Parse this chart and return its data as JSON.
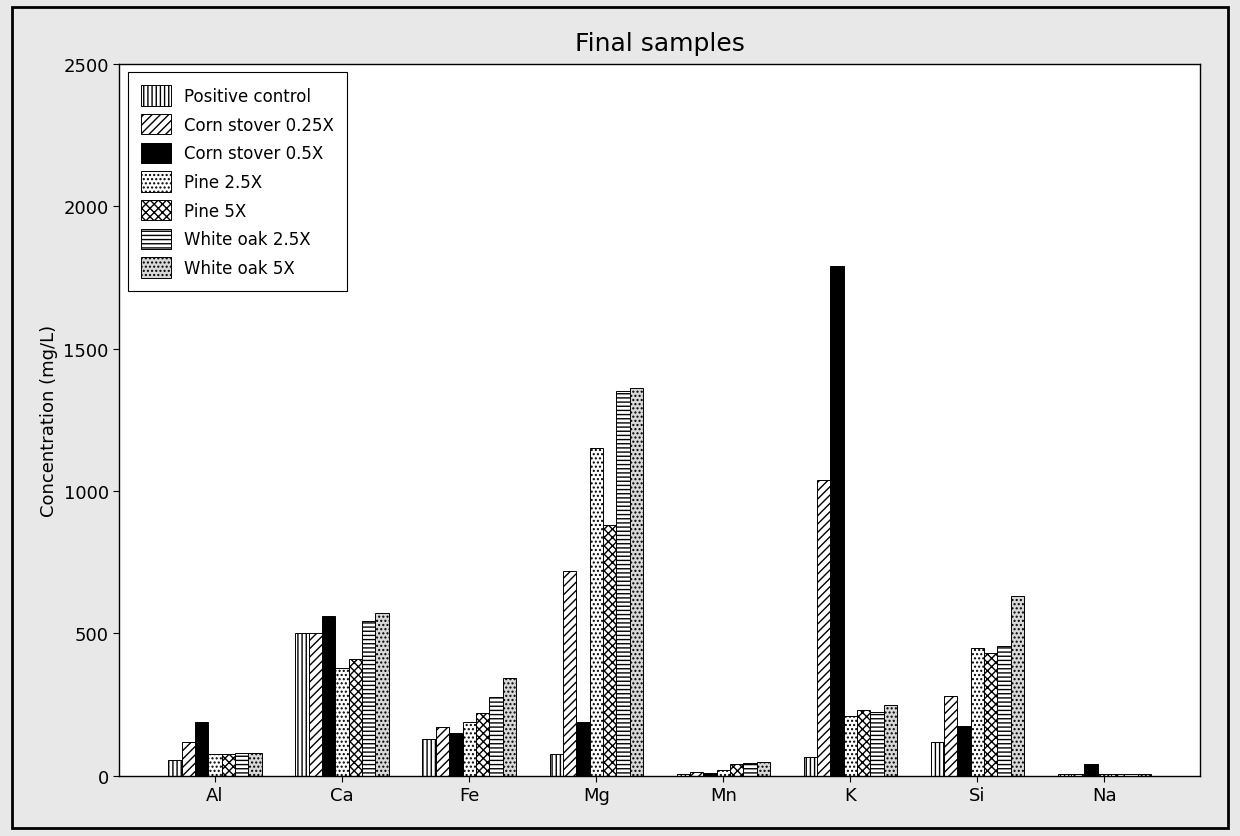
{
  "title": "Final samples",
  "ylabel": "Concentration (mg/L)",
  "xlabel": "",
  "categories": [
    "Al",
    "Ca",
    "Fe",
    "Mg",
    "Mn",
    "K",
    "Si",
    "Na"
  ],
  "series": [
    {
      "label": "Positive control",
      "hatch": "||||",
      "facecolor": "white",
      "edgecolor": "black",
      "values": [
        55,
        500,
        130,
        75,
        5,
        65,
        120,
        5
      ]
    },
    {
      "label": "Corn stover 0.25X",
      "hatch": "////",
      "facecolor": "white",
      "edgecolor": "black",
      "values": [
        120,
        500,
        170,
        720,
        15,
        1040,
        280,
        5
      ]
    },
    {
      "label": "Corn stover 0.5X",
      "hatch": "",
      "facecolor": "black",
      "edgecolor": "black",
      "values": [
        190,
        560,
        150,
        190,
        10,
        1790,
        175,
        40
      ]
    },
    {
      "label": "Pine 2.5X",
      "hatch": "....",
      "facecolor": "white",
      "edgecolor": "black",
      "values": [
        75,
        380,
        190,
        1150,
        20,
        210,
        450,
        5
      ]
    },
    {
      "label": "Pine 5X",
      "hatch": "xxxx",
      "facecolor": "white",
      "edgecolor": "black",
      "values": [
        75,
        410,
        220,
        880,
        40,
        230,
        430,
        5
      ]
    },
    {
      "label": "White oak 2.5X",
      "hatch": "----",
      "facecolor": "white",
      "edgecolor": "black",
      "values": [
        80,
        545,
        275,
        1350,
        45,
        225,
        455,
        5
      ]
    },
    {
      "label": "White oak 5X",
      "hatch": "....",
      "facecolor": "#d8d8d8",
      "edgecolor": "black",
      "values": [
        80,
        570,
        345,
        1360,
        50,
        250,
        630,
        5
      ]
    }
  ],
  "ylim": [
    0,
    2500
  ],
  "yticks": [
    0,
    500,
    1000,
    1500,
    2000,
    2500
  ],
  "bar_width": 0.105,
  "figsize": [
    12.4,
    8.37
  ],
  "dpi": 100,
  "fig_facecolor": "#e8e8e8",
  "ax_facecolor": "white",
  "title_fontsize": 18,
  "axis_fontsize": 13,
  "tick_fontsize": 13,
  "legend_fontsize": 12
}
